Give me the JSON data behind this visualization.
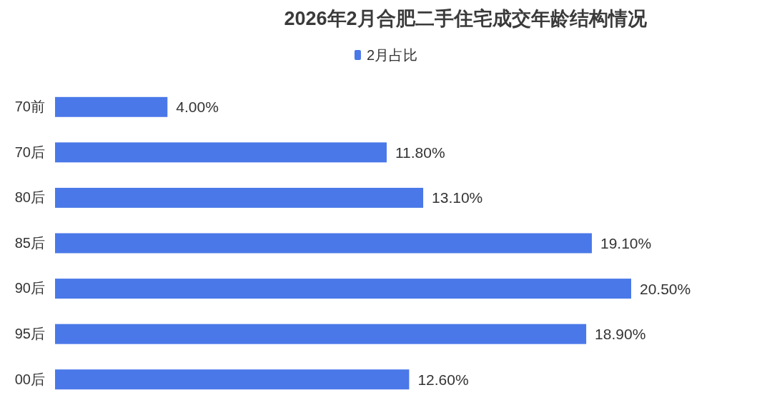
{
  "chart_data": {
    "type": "bar",
    "orientation": "horizontal",
    "title": "2026年2月合肥二手住宅成交年龄结构情况",
    "categories": [
      "70前",
      "70后",
      "80后",
      "85后",
      "90后",
      "95后",
      "00后"
    ],
    "series": [
      {
        "name": "2月占比",
        "color": "#4a78e8",
        "values": [
          4.0,
          11.8,
          13.1,
          19.1,
          20.5,
          18.9,
          12.6
        ],
        "value_labels": [
          "4.00%",
          "11.80%",
          "13.10%",
          "19.10%",
          "20.50%",
          "18.90%",
          "12.60%"
        ]
      }
    ],
    "legend": "top"
  }
}
